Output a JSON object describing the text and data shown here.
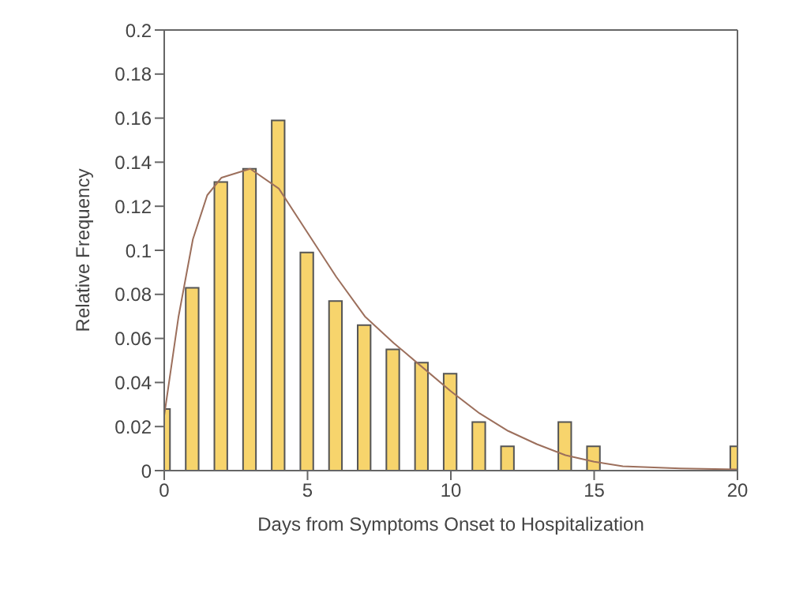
{
  "chart_data": {
    "type": "bar",
    "xlabel": "Days from Symptoms Onset to Hospitalization",
    "ylabel": "Relative Frequency",
    "x": [
      0,
      1,
      2,
      3,
      4,
      5,
      6,
      7,
      8,
      9,
      10,
      11,
      12,
      13,
      14,
      15,
      16,
      17,
      18,
      19,
      20
    ],
    "series": [
      {
        "color": "#f7d46c",
        "values": [
          0.028,
          0.083,
          0.131,
          0.137,
          0.159,
          0.099,
          0.077,
          0.066,
          0.055,
          0.049,
          0.044,
          0.022,
          0.011,
          0,
          0.022,
          0.011,
          0,
          0,
          0,
          0,
          0.011
        ]
      },
      {
        "type": "line",
        "color": "#9c6f5c",
        "x": [
          0,
          0.5,
          1,
          1.5,
          2,
          3,
          4,
          5,
          6,
          7,
          8,
          9,
          10,
          11,
          12,
          13,
          14,
          15,
          16,
          18,
          20
        ],
        "values": [
          0.025,
          0.07,
          0.105,
          0.125,
          0.133,
          0.137,
          0.128,
          0.108,
          0.088,
          0.07,
          0.058,
          0.047,
          0.036,
          0.026,
          0.018,
          0.012,
          0.007,
          0.004,
          0.002,
          0.001,
          0.0005
        ]
      }
    ],
    "xlim": [
      0,
      20
    ],
    "xticks": [
      0,
      5,
      10,
      15,
      20
    ],
    "ylim": [
      0,
      0.2
    ],
    "yticks": [
      0,
      0.02,
      0.04,
      0.06,
      0.08,
      0.1,
      0.12,
      0.14,
      0.16,
      0.18,
      0.2
    ],
    "grid": false,
    "legend": false,
    "marker": "none",
    "line_style": "solid"
  }
}
